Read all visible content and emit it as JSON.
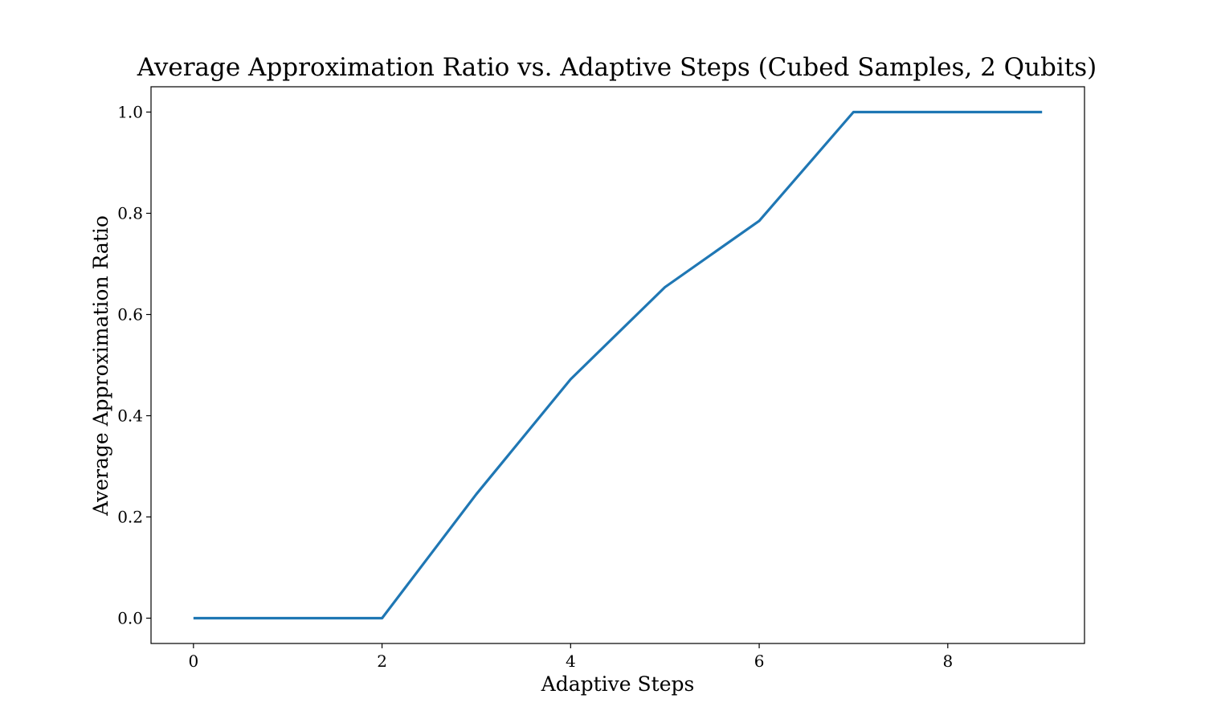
{
  "chart_data": {
    "type": "line",
    "title": "Average Approximation Ratio vs. Adaptive Steps (Cubed Samples, 2 Qubits)",
    "xlabel": "Adaptive Steps",
    "ylabel": "Average Approximation Ratio",
    "xlim": [
      -0.45,
      9.45
    ],
    "ylim": [
      -0.05,
      1.05
    ],
    "xticks": [
      0,
      2,
      4,
      6,
      8
    ],
    "xtick_labels": [
      "0",
      "2",
      "4",
      "6",
      "8"
    ],
    "yticks": [
      0.0,
      0.2,
      0.4,
      0.6,
      0.8,
      1.0
    ],
    "ytick_labels": [
      "0.0",
      "0.2",
      "0.4",
      "0.6",
      "0.8",
      "1.0"
    ],
    "grid": false,
    "series": [
      {
        "color": "#1f77b4",
        "x": [
          0,
          1,
          2,
          3,
          4,
          5,
          6,
          7,
          8,
          9
        ],
        "y": [
          0.0,
          0.0,
          0.0,
          0.245,
          0.472,
          0.654,
          0.785,
          1.0,
          1.0,
          1.0
        ]
      }
    ]
  }
}
